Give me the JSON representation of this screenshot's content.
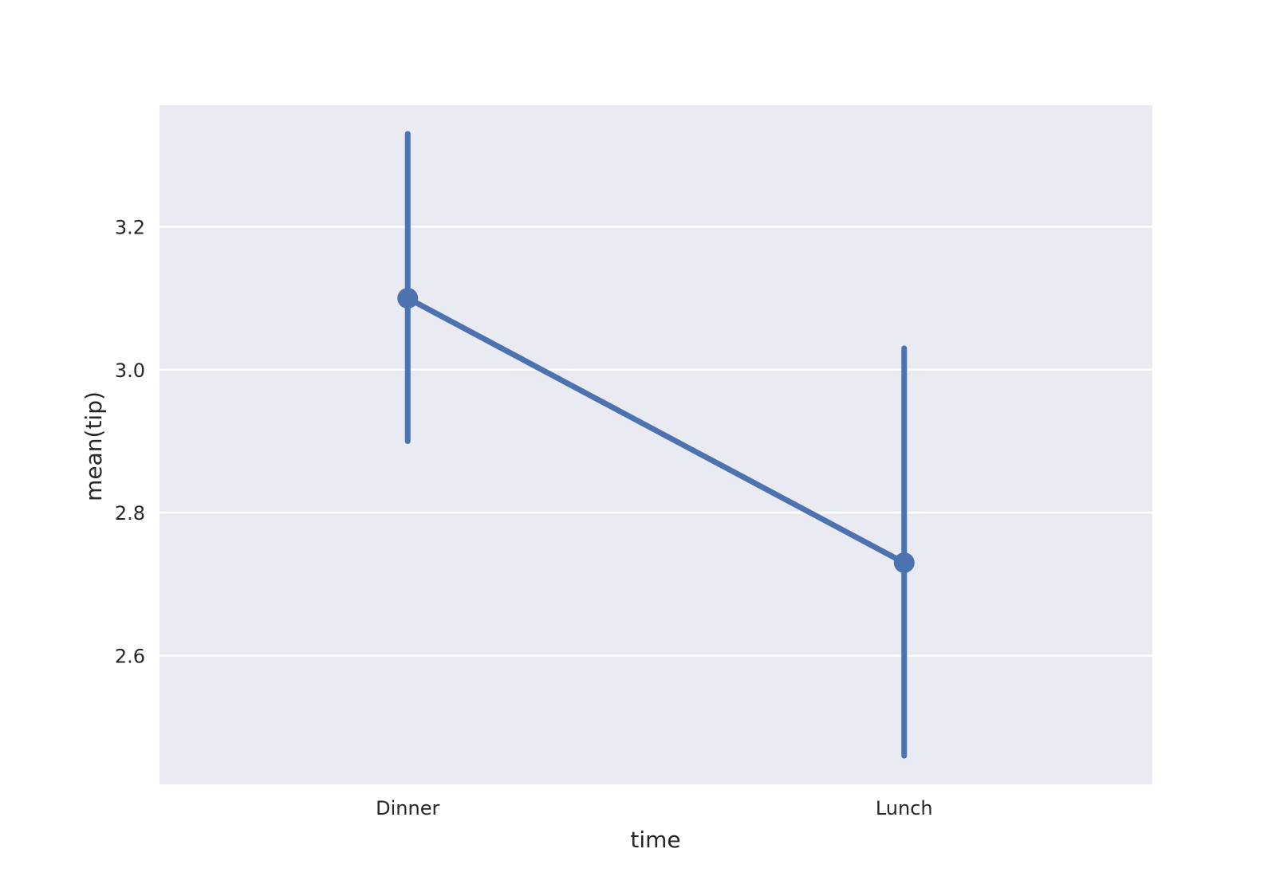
{
  "chart_data": {
    "type": "line",
    "subtype": "pointplot-with-error-bars",
    "title": "",
    "xlabel": "time",
    "ylabel": "mean(tip)",
    "categories": [
      "Dinner",
      "Lunch"
    ],
    "series": [
      {
        "values": [
          3.1,
          2.73
        ],
        "ci_low": [
          2.9,
          2.46
        ],
        "ci_high": [
          3.33,
          3.03
        ]
      }
    ],
    "ylim": [
      2.42,
      3.37
    ],
    "yticks": [
      2.6,
      2.8,
      3.0,
      3.2
    ],
    "ytick_labels": [
      "2.6",
      "2.8",
      "3.0",
      "3.2"
    ],
    "grid": true,
    "colors": {
      "series": "#4c72b0",
      "plot_background": "#eaeaf2",
      "grid": "#ffffff",
      "text": "#262626"
    }
  }
}
